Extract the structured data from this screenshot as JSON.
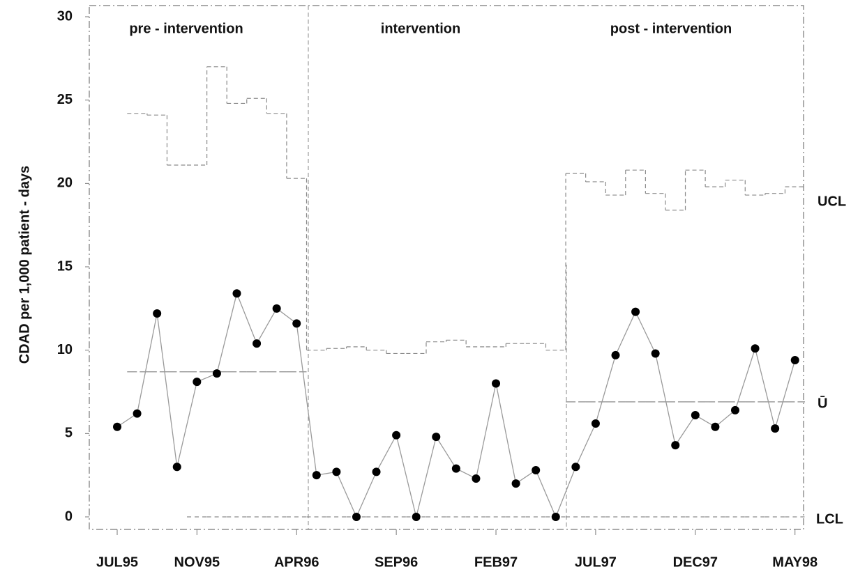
{
  "chart_data": {
    "type": "control",
    "y_label": "CDAD per 1,000 patient - days",
    "phases": [
      "pre - intervention",
      "intervention",
      "post - intervention"
    ],
    "limit_labels": {
      "ucl": "UCL",
      "center": "Ū",
      "lcl": "LCL"
    },
    "categories": [
      "JUL95",
      null,
      null,
      null,
      "NOV95",
      null,
      null,
      null,
      null,
      "APR96",
      null,
      null,
      null,
      null,
      "SEP96",
      null,
      null,
      null,
      null,
      "FEB97",
      null,
      null,
      null,
      null,
      "JUL97",
      null,
      null,
      null,
      null,
      "DEC97",
      null,
      null,
      null,
      null,
      "MAY98"
    ],
    "values": [
      5.4,
      6.2,
      12.2,
      3.0,
      8.1,
      8.6,
      13.4,
      10.4,
      12.5,
      11.6,
      2.5,
      2.7,
      0,
      2.7,
      4.9,
      0,
      4.8,
      2.9,
      2.3,
      8.0,
      2.0,
      2.8,
      0,
      3.0,
      5.6,
      9.7,
      12.3,
      9.8,
      4.3,
      6.1,
      5.4,
      6.4,
      10.1,
      5.3,
      9.4
    ],
    "ucl": [
      null,
      24.2,
      24.1,
      21.1,
      21.1,
      27.0,
      24.8,
      25.1,
      24.2,
      20.3,
      10.0,
      10.1,
      10.2,
      10.0,
      9.8,
      9.8,
      10.5,
      10.6,
      10.2,
      10.2,
      10.4,
      10.4,
      10.0,
      20.6,
      20.1,
      19.3,
      20.8,
      19.4,
      18.4,
      20.8,
      19.8,
      20.2,
      19.3,
      19.4,
      19.8
    ],
    "center": [
      null,
      8.7,
      8.7,
      8.7,
      8.7,
      8.7,
      8.7,
      8.7,
      8.7,
      8.7,
      null,
      null,
      null,
      null,
      null,
      null,
      null,
      null,
      null,
      null,
      null,
      null,
      null,
      6.9,
      6.9,
      6.9,
      6.9,
      6.9,
      6.9,
      6.9,
      6.9,
      6.9,
      6.9,
      6.9,
      6.9
    ],
    "lcl": [
      null,
      null,
      null,
      null,
      0,
      0,
      0,
      0,
      0,
      0,
      0,
      0,
      0,
      0,
      0,
      0,
      0,
      0,
      0,
      0,
      0,
      0,
      0,
      0,
      0,
      0,
      0,
      0,
      0,
      0,
      0,
      0,
      0,
      0,
      0
    ],
    "line_color": "#9a9a9a",
    "marker_color": "#000000",
    "limit_color": "#8a8a8a",
    "ylim": [
      0,
      30
    ],
    "yticks": [
      0,
      5,
      10,
      15,
      20,
      25,
      30
    ]
  }
}
